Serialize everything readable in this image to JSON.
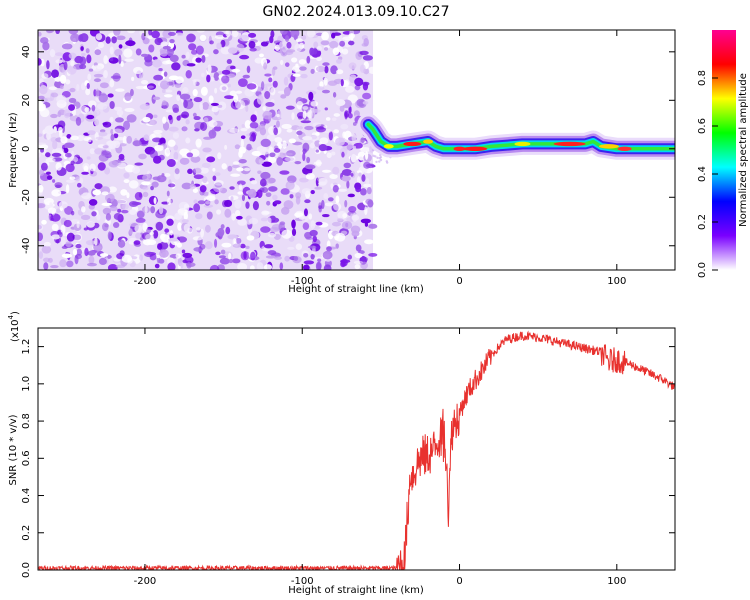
{
  "title": "GN02.2024.013.09.10.C27",
  "chart_data": [
    {
      "type": "heatmap",
      "xlabel": "Height of straight line (km)",
      "ylabel": "Frequency (Hz)",
      "xlim": [
        -268,
        137
      ],
      "ylim": [
        -50,
        49
      ],
      "x_ticks": [
        -200,
        -100,
        0,
        100
      ],
      "y_ticks": [
        -40,
        -20,
        0,
        20,
        40
      ],
      "noise_region_x": [
        -268,
        -55
      ],
      "ridge": {
        "x": [
          -58,
          -55,
          -50,
          -45,
          -40,
          -30,
          -20,
          -15,
          -10,
          0,
          10,
          20,
          40,
          60,
          80,
          85,
          90,
          100,
          110,
          137
        ],
        "y": [
          10,
          8,
          3,
          1,
          1,
          2,
          3,
          1,
          0,
          0,
          0,
          1,
          2,
          2,
          2,
          3,
          1,
          0,
          0,
          0
        ]
      },
      "colorbar": {
        "label": "Normalized spectral amplitude",
        "ticks": [
          "0.0",
          "0.2",
          "0.4",
          "0.6",
          "0.8"
        ],
        "range": [
          0,
          1
        ],
        "colors": [
          "#ffffff",
          "#7a00ff",
          "#0000ff",
          "#00ffff",
          "#00ff00",
          "#ffff00",
          "#ff0000",
          "#ff0090"
        ]
      }
    },
    {
      "type": "line",
      "xlabel": "Height of straight line (km)",
      "ylabel": "SNR (10 * v/v)",
      "ylabel_exponent": "(x10",
      "ylabel_exponent_power": "4",
      "xlim": [
        -268,
        137
      ],
      "ylim": [
        0,
        1.3
      ],
      "x_ticks": [
        -200,
        -100,
        0,
        100
      ],
      "y_ticks": [
        "0.0",
        "0.2",
        "0.4",
        "0.6",
        "0.8",
        "1.0",
        "1.2"
      ],
      "color": "#e8312e",
      "series": [
        {
          "x": [
            -268,
            -100,
            -40,
            -35,
            -33,
            -31,
            -30,
            -28,
            -25,
            -20,
            -15,
            -12,
            -10,
            -8,
            -7,
            -5,
            0,
            5,
            10,
            15,
            20,
            25,
            30,
            40,
            50,
            60,
            70,
            80,
            90,
            95,
            100,
            110,
            120,
            130,
            137
          ],
          "y": [
            0.01,
            0.01,
            0.01,
            0.05,
            0.3,
            0.55,
            0.5,
            0.55,
            0.6,
            0.62,
            0.65,
            0.7,
            0.8,
            0.55,
            0.3,
            0.75,
            0.85,
            0.95,
            1.02,
            1.08,
            1.15,
            1.2,
            1.24,
            1.26,
            1.25,
            1.23,
            1.21,
            1.19,
            1.17,
            1.12,
            1.13,
            1.1,
            1.06,
            1.02,
            0.98
          ]
        }
      ]
    }
  ]
}
